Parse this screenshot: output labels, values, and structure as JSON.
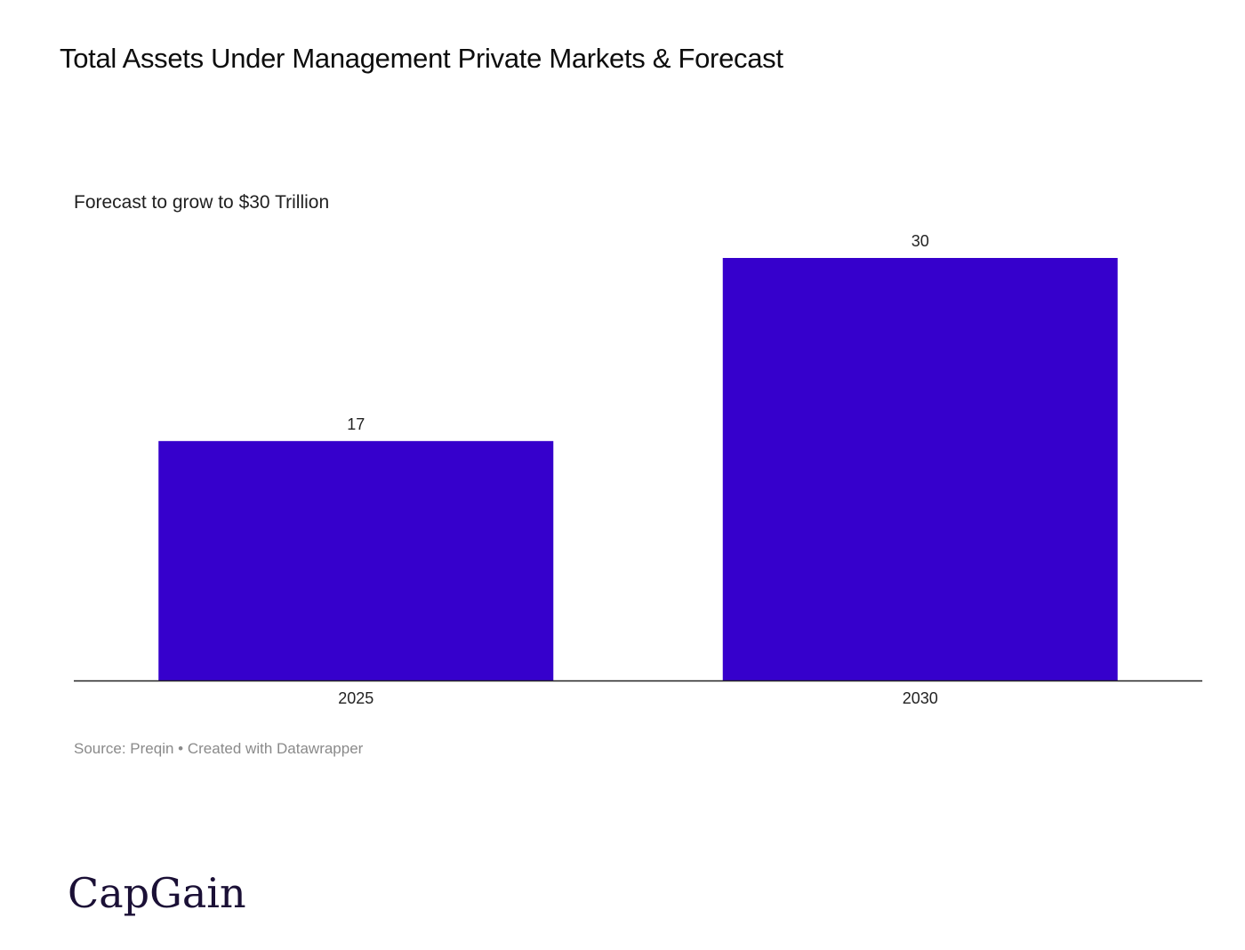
{
  "header": {
    "title": "Total Assets Under Management Private Markets & Forecast",
    "subtitle": "Forecast to grow to $30 Trillion"
  },
  "footer": {
    "source": "Source: Preqin • Created with Datawrapper"
  },
  "logo": {
    "text": "CapGain"
  },
  "colors": {
    "bar": "#3600cc",
    "axis": "#222222",
    "logo": "#1b1036"
  },
  "chart_data": {
    "type": "bar",
    "title": "Total Assets Under Management Private Markets & Forecast",
    "subtitle": "Forecast to grow to $30 Trillion",
    "categories": [
      "2025",
      "2030"
    ],
    "values": [
      17,
      30
    ],
    "data_labels": [
      "17",
      "30"
    ],
    "xlabel": "",
    "ylabel": "",
    "ylim": [
      0,
      30
    ],
    "grid": false,
    "legend": "none"
  }
}
